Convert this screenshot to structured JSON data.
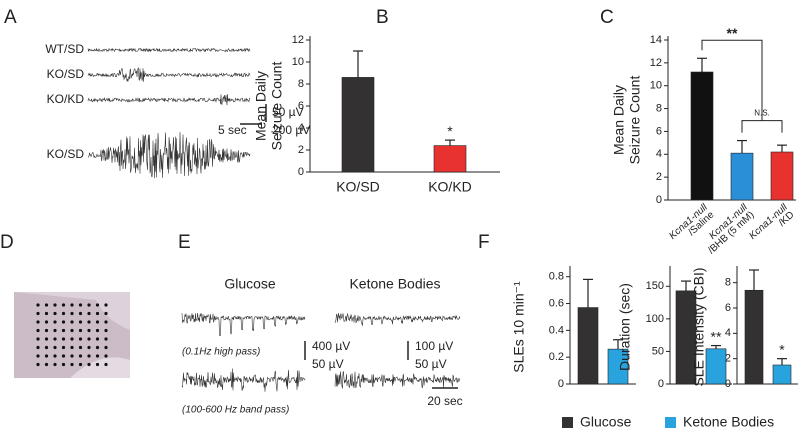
{
  "panel_labels": [
    "A",
    "B",
    "C",
    "D",
    "E",
    "F"
  ],
  "panel_a": {
    "traces": [
      "WT/SD",
      "KO/SD",
      "KO/KD",
      "KO/SD"
    ],
    "scale_labels": [
      "50 µV",
      "5 sec",
      "200 µV"
    ]
  },
  "panel_e": {
    "conditions": [
      "Glucose",
      "Ketone Bodies"
    ],
    "filters": [
      "(0.1Hz  high pass)",
      "(100-600 Hz band pass)"
    ],
    "scale_labels": [
      "400 µV",
      "50 µV",
      "100 µV",
      "50 µV",
      "20 sec"
    ]
  },
  "panel_f_legend": [
    {
      "name": "Glucose",
      "color": "#333132"
    },
    {
      "name": "Ketone Bodies",
      "color": "#29a3dd"
    }
  ],
  "chart_data": [
    {
      "type": "bar",
      "ylabel": [
        "Mean Daily",
        "Seizure Count"
      ],
      "categories": [
        "KO/SD",
        "KO/KD"
      ],
      "values": [
        8.6,
        2.4
      ],
      "errors": [
        2.4,
        0.5
      ],
      "colors": [
        "#333132",
        "#e8322f"
      ],
      "ylim": [
        0,
        12
      ],
      "yticks": [
        0,
        2,
        4,
        6,
        8,
        10,
        12
      ],
      "annotations": [
        "*"
      ]
    },
    {
      "type": "bar",
      "ylabel": [
        "Mean Daily",
        "Seizure Count"
      ],
      "categories": [
        [
          "Kcna1-null",
          "/Saline"
        ],
        [
          "Kcna1-null",
          "/BHB (5 mM)"
        ],
        [
          "Kcna1-null",
          "/KD"
        ]
      ],
      "values": [
        11.2,
        4.1,
        4.2
      ],
      "errors": [
        1.2,
        1.1,
        0.6
      ],
      "colors": [
        "#111111",
        "#2b8fd8",
        "#e8322f"
      ],
      "ylim": [
        0,
        14
      ],
      "yticks": [
        0,
        2,
        4,
        6,
        8,
        10,
        12,
        14
      ],
      "annotations": [
        "**",
        "N.S."
      ]
    },
    {
      "type": "bar",
      "ylabel": [
        "SLEs 10 min⁻¹"
      ],
      "values": [
        0.57,
        0.26
      ],
      "errors": [
        0.21,
        0.07
      ],
      "ylim": [
        0,
        0.85
      ],
      "yticks": [
        0,
        0.2,
        0.4,
        0.6,
        0.8
      ]
    },
    {
      "type": "bar",
      "ylabel": [
        "Duration (sec)"
      ],
      "values": [
        143,
        54
      ],
      "errors": [
        15,
        5
      ],
      "ylim": [
        0,
        175
      ],
      "yticks": [
        0,
        50,
        100,
        150
      ],
      "annotations": [
        "**"
      ]
    },
    {
      "type": "bar",
      "ylabel": [
        "SLE Intensity (CBI)"
      ],
      "values": [
        7.4,
        1.5
      ],
      "errors": [
        1.6,
        0.5
      ],
      "ylim": [
        0,
        9
      ],
      "yticks": [
        0,
        2,
        4,
        6,
        8
      ],
      "annotations": [
        "*"
      ]
    }
  ]
}
